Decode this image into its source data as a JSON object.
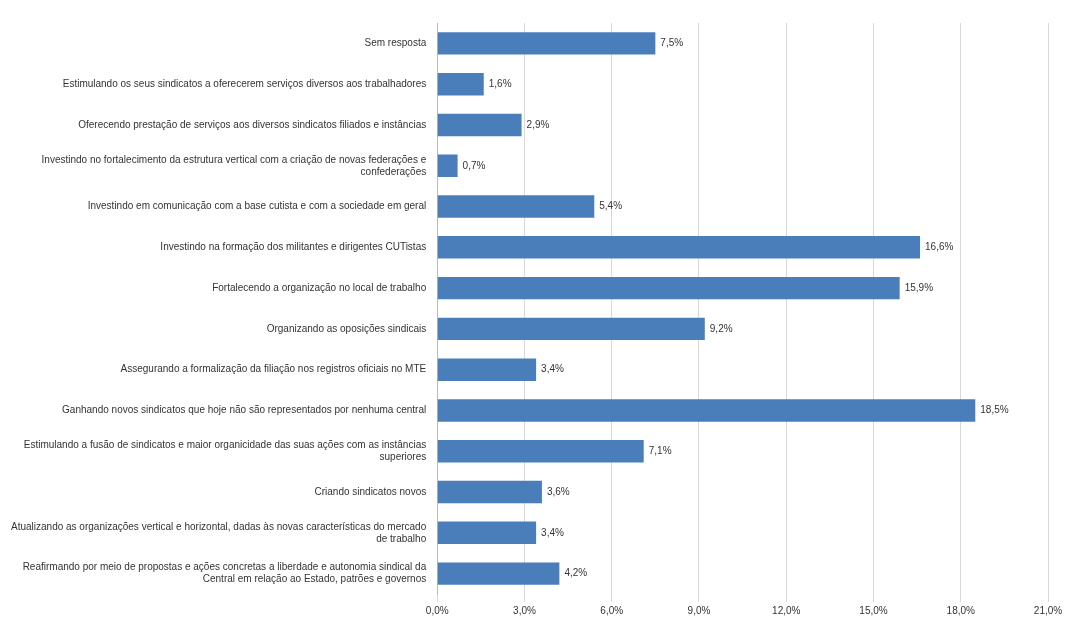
{
  "chart_data": {
    "type": "bar",
    "orientation": "horizontal",
    "categories": [
      "Sem resposta",
      "Estimulando os seus sindicatos a oferecerem serviços diversos aos trabalhadores",
      "Oferecendo prestação de serviços aos diversos sindicatos filiados e instâncias",
      "Investindo no fortalecimento da estrutura vertical com a criação de novas federações e confederações",
      "Investindo em comunicação com a base cutista e com a sociedade em geral",
      "Investindo na formação dos militantes e dirigentes CUTistas",
      "Fortalecendo a organização no local de trabalho",
      "Organizando as oposições sindicais",
      "Assegurando a formalização da filiação nos registros oficiais no MTE",
      "Ganhando novos sindicatos que hoje não são representados por nenhuma central",
      "Estimulando a fusão de sindicatos e maior organicidade das suas ações com as instâncias superiores",
      "Criando sindicatos novos",
      "Atualizando as organizações vertical e horizontal, dadas às novas características do mercado de trabalho",
      "Reafirmando por meio de propostas e ações concretas a liberdade e autonomia sindical da Central em relação ao Estado, patrões e governos"
    ],
    "values": [
      7.5,
      1.6,
      2.9,
      0.7,
      5.4,
      16.6,
      15.9,
      9.2,
      3.4,
      18.5,
      7.1,
      3.6,
      3.4,
      4.2
    ],
    "value_labels": [
      "7,5%",
      "1,6%",
      "2,9%",
      "0,7%",
      "5,4%",
      "16,6%",
      "15,9%",
      "9,2%",
      "3,4%",
      "18,5%",
      "7,1%",
      "3,6%",
      "3,4%",
      "4,2%"
    ],
    "color": "#4a7ebb",
    "xlim": [
      0,
      21
    ],
    "xticks": [
      {
        "value": 0,
        "label": "0,0%"
      },
      {
        "value": 3,
        "label": "3,0%"
      },
      {
        "value": 6,
        "label": "6,0%"
      },
      {
        "value": 9,
        "label": "9,0%"
      },
      {
        "value": 12,
        "label": "12,0%"
      },
      {
        "value": 15,
        "label": "15,0%"
      },
      {
        "value": 18,
        "label": "18,0%"
      },
      {
        "value": 21,
        "label": "21,0%"
      }
    ],
    "grid": "x",
    "legend": false
  }
}
